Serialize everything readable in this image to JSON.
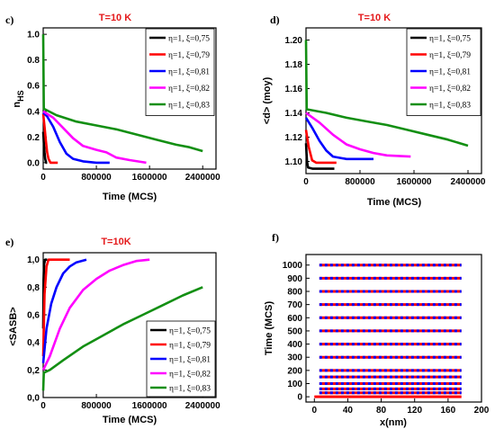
{
  "chart_data": [
    {
      "id": "c",
      "panel": "c)",
      "type": "line",
      "badge": "T=10 K",
      "badge_color": "#e41a1c",
      "ylabel_main": "n",
      "ylabel_sub": "HS",
      "xlabel": "Time (MCS)",
      "xlim": [
        0,
        2600000
      ],
      "ylim": [
        -0.05,
        1.05
      ],
      "xticks": [
        0,
        800000,
        1600000,
        2400000
      ],
      "xtick_labels": [
        "0",
        "800000",
        "1600000",
        "2400000"
      ],
      "yticks": [
        0,
        0.2,
        0.4,
        0.6,
        0.8,
        1.0
      ],
      "ytick_labels": [
        "0.0",
        "0.2",
        "0.4",
        "0.6",
        "0.8",
        "1.0"
      ],
      "legend": "top-right",
      "series": [
        {
          "name": "η=1, ξ=0,75",
          "color": "#000000",
          "points": [
            [
              0,
              0.24
            ],
            [
              10000,
              0.16
            ],
            [
              20000,
              0.08
            ],
            [
              30000,
              0.03
            ],
            [
              45000,
              0.0
            ],
            [
              60000,
              0.0
            ]
          ]
        },
        {
          "name": "η=1, ξ=0,79",
          "color": "#ff0000",
          "points": [
            [
              0,
              0.38
            ],
            [
              20000,
              0.28
            ],
            [
              40000,
              0.17
            ],
            [
              60000,
              0.08
            ],
            [
              80000,
              0.03
            ],
            [
              110000,
              0.0
            ],
            [
              220000,
              0.0
            ]
          ]
        },
        {
          "name": "η=1, ξ=0,81",
          "color": "#0000ff",
          "points": [
            [
              0,
              0.39
            ],
            [
              60000,
              0.36
            ],
            [
              150000,
              0.28
            ],
            [
              250000,
              0.16
            ],
            [
              350000,
              0.07
            ],
            [
              450000,
              0.03
            ],
            [
              600000,
              0.01
            ],
            [
              800000,
              0.0
            ],
            [
              1000000,
              0.0
            ]
          ]
        },
        {
          "name": "η=1, ξ=0,82",
          "color": "#ff00ff",
          "points": [
            [
              0,
              0.4
            ],
            [
              150000,
              0.35
            ],
            [
              300000,
              0.27
            ],
            [
              450000,
              0.19
            ],
            [
              600000,
              0.13
            ],
            [
              800000,
              0.1
            ],
            [
              950000,
              0.08
            ],
            [
              1100000,
              0.04
            ],
            [
              1300000,
              0.02
            ],
            [
              1550000,
              0.0
            ]
          ]
        },
        {
          "name": "η=1, ξ=0,83",
          "color": "#138f13",
          "points": [
            [
              0,
              1.0
            ],
            [
              10000,
              0.42
            ],
            [
              200000,
              0.37
            ],
            [
              500000,
              0.32
            ],
            [
              800000,
              0.29
            ],
            [
              1100000,
              0.26
            ],
            [
              1400000,
              0.22
            ],
            [
              1700000,
              0.18
            ],
            [
              2000000,
              0.14
            ],
            [
              2200000,
              0.12
            ],
            [
              2400000,
              0.09
            ]
          ]
        }
      ]
    },
    {
      "id": "d",
      "panel": "d)",
      "type": "line",
      "badge": "T=10 K",
      "badge_color": "#e41a1c",
      "ylabel_main": "<d> (moy)",
      "xlabel": "Time (MCS)",
      "xlim": [
        0,
        2600000
      ],
      "ylim": [
        1.09,
        1.21
      ],
      "xticks": [
        0,
        800000,
        1600000,
        2400000
      ],
      "xtick_labels": [
        "0",
        "800000",
        "1600000",
        "2400000"
      ],
      "yticks": [
        1.1,
        1.12,
        1.14,
        1.16,
        1.18,
        1.2
      ],
      "ytick_labels": [
        "1.10",
        "1.12",
        "1.14",
        "1.16",
        "1.18",
        "1.20"
      ],
      "legend": "top-right",
      "series": [
        {
          "name": "η=1, ξ=0,75",
          "color": "#000000",
          "points": [
            [
              0,
              1.115
            ],
            [
              15000,
              1.1
            ],
            [
              30000,
              1.095
            ],
            [
              100000,
              1.094
            ],
            [
              300000,
              1.094
            ],
            [
              420000,
              1.094
            ]
          ]
        },
        {
          "name": "η=1, ξ=0,79",
          "color": "#ff0000",
          "points": [
            [
              0,
              1.126
            ],
            [
              40000,
              1.112
            ],
            [
              90000,
              1.101
            ],
            [
              150000,
              1.099
            ],
            [
              300000,
              1.099
            ],
            [
              450000,
              1.099
            ]
          ]
        },
        {
          "name": "η=1, ξ=0,81",
          "color": "#0000ff",
          "points": [
            [
              0,
              1.136
            ],
            [
              100000,
              1.127
            ],
            [
              200000,
              1.117
            ],
            [
              300000,
              1.109
            ],
            [
              400000,
              1.104
            ],
            [
              600000,
              1.102
            ],
            [
              1000000,
              1.102
            ]
          ]
        },
        {
          "name": "η=1, ξ=0,82",
          "color": "#ff00ff",
          "points": [
            [
              0,
              1.14
            ],
            [
              200000,
              1.132
            ],
            [
              400000,
              1.122
            ],
            [
              600000,
              1.114
            ],
            [
              800000,
              1.11
            ],
            [
              1000000,
              1.107
            ],
            [
              1200000,
              1.105
            ],
            [
              1550000,
              1.104
            ]
          ]
        },
        {
          "name": "η=1, ξ=0,83",
          "color": "#138f13",
          "points": [
            [
              0,
              1.2
            ],
            [
              10000,
              1.143
            ],
            [
              300000,
              1.14
            ],
            [
              600000,
              1.136
            ],
            [
              900000,
              1.133
            ],
            [
              1200000,
              1.13
            ],
            [
              1500000,
              1.126
            ],
            [
              1800000,
              1.122
            ],
            [
              2100000,
              1.118
            ],
            [
              2400000,
              1.113
            ]
          ]
        }
      ]
    },
    {
      "id": "e",
      "panel": "e)",
      "type": "line",
      "badge": "T=10K",
      "badge_color": "#e41a1c",
      "ylabel_main": "<SASB>",
      "xlabel": "Time (MCS)",
      "xlim": [
        0,
        2600000
      ],
      "ylim": [
        0,
        1.05
      ],
      "xticks": [
        0,
        800000,
        1600000,
        2400000
      ],
      "xtick_labels": [
        "0",
        "800000",
        "1600000",
        "2400000"
      ],
      "yticks": [
        0,
        0.2,
        0.4,
        0.6,
        0.8,
        1.0
      ],
      "ytick_labels": [
        "0,0",
        "0,2",
        "0,4",
        "0,6",
        "0,8",
        "1,0"
      ],
      "legend": "bottom-right",
      "series": [
        {
          "name": "η=1, ξ=0,75",
          "color": "#000000",
          "points": [
            [
              0,
              0.5
            ],
            [
              5000,
              0.85
            ],
            [
              15000,
              0.97
            ],
            [
              30000,
              1.0
            ],
            [
              60000,
              1.0
            ]
          ]
        },
        {
          "name": "η=1, ξ=0,79",
          "color": "#ff0000",
          "points": [
            [
              0,
              0.3
            ],
            [
              20000,
              0.75
            ],
            [
              50000,
              0.95
            ],
            [
              80000,
              1.0
            ],
            [
              400000,
              1.0
            ]
          ]
        },
        {
          "name": "η=1, ξ=0,81",
          "color": "#0000ff",
          "points": [
            [
              0,
              0.25
            ],
            [
              50000,
              0.5
            ],
            [
              120000,
              0.68
            ],
            [
              200000,
              0.8
            ],
            [
              300000,
              0.9
            ],
            [
              400000,
              0.95
            ],
            [
              500000,
              0.98
            ],
            [
              650000,
              1.0
            ]
          ]
        },
        {
          "name": "η=1, ξ=0,82",
          "color": "#ff00ff",
          "points": [
            [
              0,
              0.2
            ],
            [
              100000,
              0.3
            ],
            [
              250000,
              0.5
            ],
            [
              400000,
              0.65
            ],
            [
              600000,
              0.78
            ],
            [
              800000,
              0.86
            ],
            [
              1000000,
              0.92
            ],
            [
              1200000,
              0.96
            ],
            [
              1400000,
              0.99
            ],
            [
              1600000,
              1.0
            ]
          ]
        },
        {
          "name": "η=1, ξ=0,83",
          "color": "#138f13",
          "points": [
            [
              0,
              0.05
            ],
            [
              10000,
              0.18
            ],
            [
              100000,
              0.2
            ],
            [
              300000,
              0.27
            ],
            [
              600000,
              0.37
            ],
            [
              900000,
              0.45
            ],
            [
              1200000,
              0.53
            ],
            [
              1500000,
              0.6
            ],
            [
              1800000,
              0.67
            ],
            [
              2100000,
              0.74
            ],
            [
              2400000,
              0.8
            ]
          ]
        }
      ]
    },
    {
      "id": "f",
      "panel": "f)",
      "type": "line",
      "ylabel_main": "Time (MCS)",
      "xlabel": "x(nm)",
      "xlim": [
        -10,
        200
      ],
      "ylim": [
        -40,
        1080
      ],
      "xticks": [
        0,
        40,
        80,
        120,
        160,
        200
      ],
      "xtick_labels": [
        "0",
        "40",
        "80",
        "120",
        "160",
        "200"
      ],
      "yticks": [
        0,
        100,
        200,
        300,
        400,
        500,
        600,
        700,
        800,
        900,
        1000
      ],
      "ytick_labels": [
        "0",
        "100",
        "200",
        "300",
        "400",
        "500",
        "600",
        "700",
        "800",
        "900",
        "1000"
      ],
      "rows": [
        0,
        30,
        60,
        100,
        150,
        200,
        300,
        400,
        500,
        600,
        700,
        800,
        900,
        1000
      ],
      "row_x": [
        2,
        176
      ],
      "row_x_start": [
        0,
        6
      ],
      "colors": [
        "#ff0000",
        "#0000ff"
      ]
    }
  ]
}
